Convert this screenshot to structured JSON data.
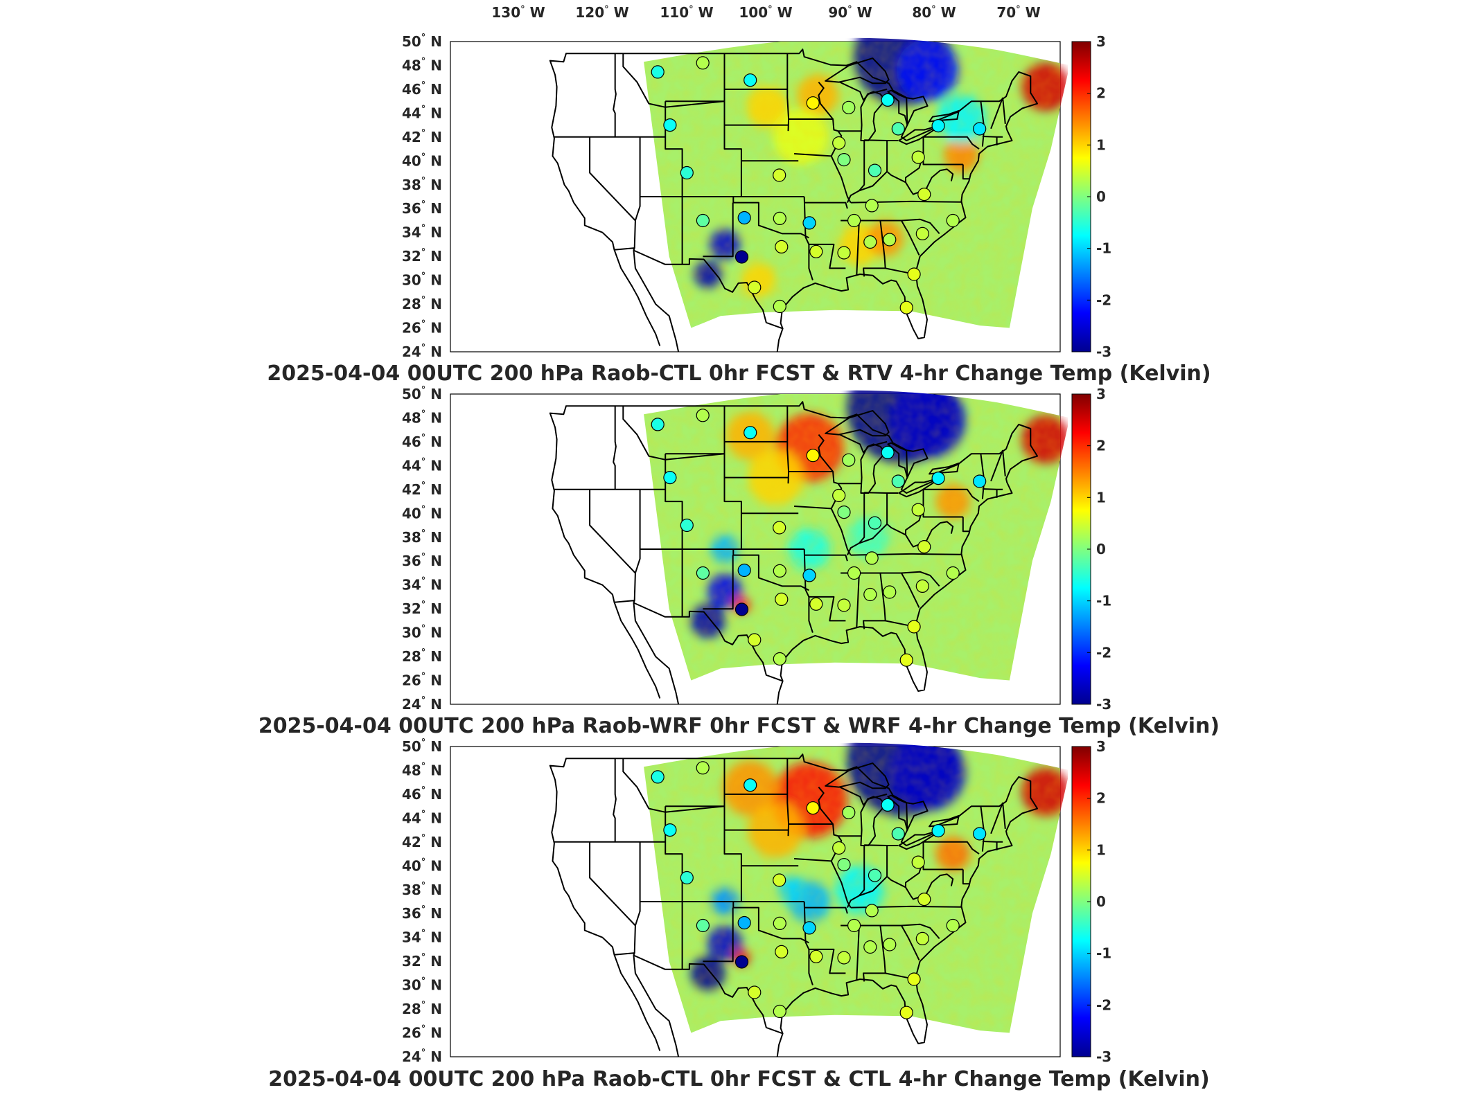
{
  "panels": [
    {
      "title": "2025-04-04 00UTC 200 hPa Raob-CTL 0hr FCST & RTV 4-hr Change Temp (Kelvin)",
      "field": "rtv"
    },
    {
      "title": "2025-04-04 00UTC 200 hPa Raob-WRF 0hr FCST & WRF 4-hr Change Temp (Kelvin)",
      "field": "wrf"
    },
    {
      "title": "2025-04-04 00UTC 200 hPa Raob-CTL 0hr FCST & CTL 4-hr Change Temp (Kelvin)",
      "field": "ctl"
    }
  ],
  "longitude_labels": [
    "130",
    "120",
    "110",
    "100",
    "90",
    "80",
    "70"
  ],
  "longitude_suffix": "W",
  "latitude_labels": [
    "50",
    "48",
    "46",
    "44",
    "42",
    "40",
    "38",
    "36",
    "34",
    "32",
    "30",
    "28",
    "26",
    "24"
  ],
  "latitude_suffix": "N",
  "colorbar": {
    "ticks": [
      "3",
      "2",
      "1",
      "0",
      "-1",
      "-2",
      "-3"
    ],
    "range": [
      -3,
      3
    ],
    "colormap": "jet"
  },
  "colors": {
    "jet_dark_blue": "#00008f",
    "jet_cyan": "#00ffff",
    "jet_yellow": "#ffff00",
    "jet_dark_red": "#800000",
    "outline": "#000000"
  },
  "raob_stations": [
    {
      "lon": -111.95,
      "lat": 47.45
    },
    {
      "lon": -106.62,
      "lat": 48.21
    },
    {
      "lon": -101.0,
      "lat": 46.77
    },
    {
      "lon": -93.57,
      "lat": 44.85
    },
    {
      "lon": -89.34,
      "lat": 44.47
    },
    {
      "lon": -84.72,
      "lat": 45.1
    },
    {
      "lon": -83.47,
      "lat": 42.69
    },
    {
      "lon": -78.73,
      "lat": 42.94
    },
    {
      "lon": -73.84,
      "lat": 42.69
    },
    {
      "lon": -110.5,
      "lat": 43.0
    },
    {
      "lon": -108.5,
      "lat": 39.0
    },
    {
      "lon": -97.55,
      "lat": 38.8
    },
    {
      "lon": -89.9,
      "lat": 40.1
    },
    {
      "lon": -86.25,
      "lat": 39.2
    },
    {
      "lon": -90.5,
      "lat": 41.5
    },
    {
      "lon": -106.6,
      "lat": 35.0
    },
    {
      "lon": -101.7,
      "lat": 35.23
    },
    {
      "lon": -97.5,
      "lat": 35.18
    },
    {
      "lon": -94.0,
      "lat": 34.8
    },
    {
      "lon": -97.3,
      "lat": 32.8
    },
    {
      "lon": -102.0,
      "lat": 31.95
    },
    {
      "lon": -100.5,
      "lat": 29.4
    },
    {
      "lon": -97.5,
      "lat": 27.8
    },
    {
      "lon": -93.2,
      "lat": 32.4
    },
    {
      "lon": -89.9,
      "lat": 32.3
    },
    {
      "lon": -86.8,
      "lat": 33.2
    },
    {
      "lon": -84.5,
      "lat": 33.4
    },
    {
      "lon": -80.6,
      "lat": 33.9
    },
    {
      "lon": -81.6,
      "lat": 30.5
    },
    {
      "lon": -82.5,
      "lat": 27.7
    },
    {
      "lon": -77.0,
      "lat": 35.0
    },
    {
      "lon": -80.4,
      "lat": 37.2
    },
    {
      "lon": -86.6,
      "lat": 36.25
    },
    {
      "lon": -81.1,
      "lat": 40.3
    },
    {
      "lon": -88.7,
      "lat": 35.0
    }
  ],
  "raob_values": {
    "rtv": [
      -0.6,
      0.3,
      -0.7,
      0.8,
      0.2,
      -0.7,
      -0.3,
      -0.8,
      -0.9,
      -0.7,
      -0.5,
      0.5,
      0.0,
      -0.3,
      0.4,
      -0.2,
      -1.2,
      0.3,
      -1.0,
      0.5,
      -3.0,
      0.5,
      0.3,
      0.5,
      0.4,
      0.3,
      0.3,
      0.4,
      0.6,
      0.6,
      0.3,
      0.5,
      0.3,
      0.4,
      0.3
    ],
    "wrf": [
      -0.6,
      0.3,
      -0.7,
      0.8,
      0.2,
      -0.7,
      -0.3,
      -0.8,
      -0.9,
      -0.7,
      -0.5,
      0.5,
      0.0,
      -0.3,
      0.4,
      -0.2,
      -1.2,
      0.3,
      -1.0,
      0.5,
      -3.0,
      0.5,
      0.3,
      0.5,
      0.4,
      0.3,
      0.3,
      0.4,
      0.6,
      0.6,
      0.3,
      0.5,
      0.3,
      0.4,
      0.3
    ],
    "ctl": [
      -0.6,
      0.3,
      -0.7,
      0.8,
      0.2,
      -0.7,
      -0.3,
      -0.8,
      -0.9,
      -0.7,
      -0.5,
      0.5,
      0.0,
      -0.3,
      0.4,
      -0.2,
      -1.2,
      0.3,
      -1.0,
      0.5,
      -3.0,
      0.5,
      0.3,
      0.5,
      0.4,
      0.3,
      0.3,
      0.4,
      0.6,
      0.6,
      0.3,
      0.5,
      0.3,
      0.4,
      0.3
    ]
  }
}
